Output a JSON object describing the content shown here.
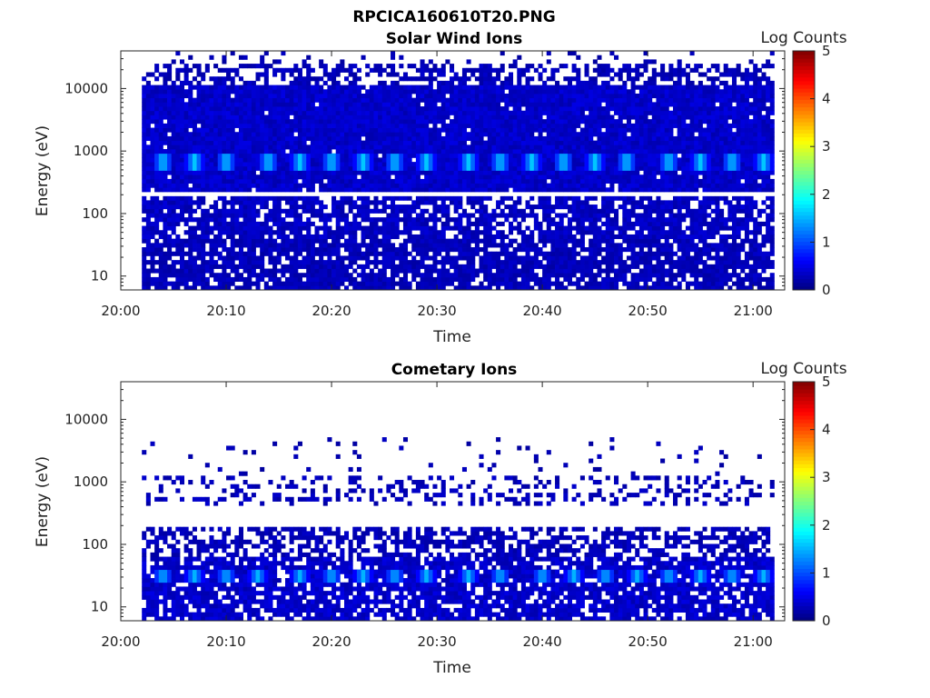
{
  "figure": {
    "title": "RPCICA160610T20.PNG"
  },
  "colorbar": {
    "label": "Log Counts",
    "ticks": [
      "0",
      "1",
      "2",
      "3",
      "4",
      "5"
    ],
    "range": [
      0,
      5
    ],
    "colormap": "jet"
  },
  "chart_data": [
    {
      "type": "heatmap",
      "title": "Solar Wind Ions",
      "xlabel": "Time",
      "ylabel": "Energy (eV)",
      "y_scale": "log",
      "xlim": [
        "20:00",
        "21:03"
      ],
      "ylim": [
        6,
        40000
      ],
      "x_ticks": [
        "20:00",
        "20:10",
        "20:20",
        "20:30",
        "20:40",
        "20:50",
        "21:00"
      ],
      "y_ticks": [
        "10",
        "100",
        "1000",
        "10000"
      ],
      "data_start_time": "20:02",
      "data_end_time": "21:02",
      "bands": [
        {
          "e_low": 200,
          "e_high": 12000,
          "level": 0.45,
          "fill": 0.97
        },
        {
          "e_low": 12000,
          "e_high": 25000,
          "level": 0.35,
          "fill": 0.55
        },
        {
          "e_low": 25000,
          "e_high": 40000,
          "level": 0.3,
          "fill": 0.12
        },
        {
          "e_low": 40,
          "e_high": 190,
          "level": 0.4,
          "fill": 0.78
        },
        {
          "e_low": 6,
          "e_high": 40,
          "level": 0.35,
          "fill": 0.82
        }
      ],
      "peaks": {
        "e_low": 520,
        "e_high": 850,
        "level": 1.3,
        "times": [
          "20:04",
          "20:07",
          "20:10",
          "20:14",
          "20:17",
          "20:20",
          "20:23",
          "20:26",
          "20:29",
          "20:33",
          "20:36",
          "20:39",
          "20:42",
          "20:45",
          "20:48",
          "20:52",
          "20:55",
          "20:58",
          "21:01"
        ]
      },
      "gap_energy": 200
    },
    {
      "type": "heatmap",
      "title": "Cometary Ions",
      "xlabel": "Time",
      "ylabel": "Energy (eV)",
      "y_scale": "log",
      "xlim": [
        "20:00",
        "21:03"
      ],
      "ylim": [
        6,
        40000
      ],
      "x_ticks": [
        "20:00",
        "20:10",
        "20:20",
        "20:30",
        "20:40",
        "20:50",
        "21:00"
      ],
      "y_ticks": [
        "10",
        "100",
        "1000",
        "10000"
      ],
      "data_start_time": "20:02",
      "data_end_time": "21:02",
      "bands": [
        {
          "e_low": 6,
          "e_high": 60,
          "level": 0.45,
          "fill": 0.8
        },
        {
          "e_low": 60,
          "e_high": 200,
          "level": 0.35,
          "fill": 0.55
        },
        {
          "e_low": 450,
          "e_high": 1300,
          "level": 0.35,
          "fill": 0.28
        },
        {
          "e_low": 1300,
          "e_high": 5000,
          "level": 0.3,
          "fill": 0.05
        }
      ],
      "peaks": {
        "e_low": 25,
        "e_high": 40,
        "level": 1.2,
        "times": [
          "20:04",
          "20:07",
          "20:10",
          "20:13",
          "20:17",
          "20:20",
          "20:23",
          "20:26",
          "20:29",
          "20:33",
          "20:36",
          "20:40",
          "20:43",
          "20:46",
          "20:49",
          "20:52",
          "20:55",
          "20:58",
          "21:01"
        ]
      },
      "gap_energy": null
    }
  ]
}
